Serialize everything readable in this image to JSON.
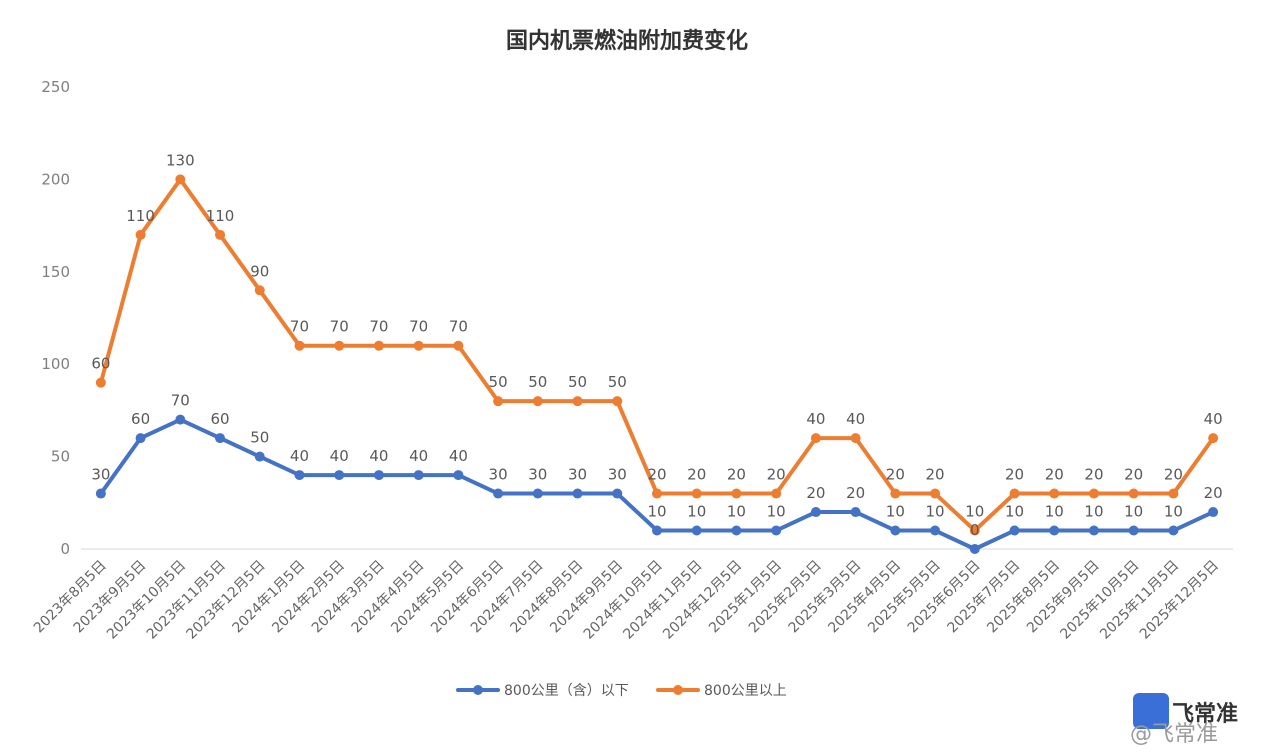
{
  "chart_data": {
    "type": "line",
    "title": "国内机票燃油附加费变化",
    "categories": [
      "2023年8月5日",
      "2023年9月5日",
      "2023年10月5日",
      "2023年11月5日",
      "2023年12月5日",
      "2024年1月5日",
      "2024年2月5日",
      "2024年3月5日",
      "2024年4月5日",
      "2024年5月5日",
      "2024年6月5日",
      "2024年7月5日",
      "2024年8月5日",
      "2024年9月5日",
      "2024年10月5日",
      "2024年11月5日",
      "2024年12月5日",
      "2025年1月5日",
      "2025年2月5日",
      "2025年3月5日",
      "2025年4月5日",
      "2025年5月5日",
      "2025年6月5日",
      "2025年7月5日",
      "2025年8月5日",
      "2025年9月5日",
      "2025年10月5日",
      "2025年11月5日",
      "2025年12月5日"
    ],
    "series": [
      {
        "name": "800公里（含）以下",
        "color": "#4472c4",
        "values": [
          30,
          60,
          70,
          60,
          50,
          40,
          40,
          40,
          40,
          40,
          30,
          30,
          30,
          30,
          10,
          10,
          10,
          10,
          20,
          20,
          10,
          10,
          0,
          10,
          10,
          10,
          10,
          10,
          20
        ]
      },
      {
        "name": "800公里以上",
        "color": "#ed7d31",
        "values": [
          60,
          110,
          130,
          110,
          90,
          70,
          70,
          70,
          70,
          70,
          50,
          50,
          50,
          50,
          20,
          20,
          20,
          20,
          40,
          40,
          20,
          20,
          10,
          20,
          20,
          20,
          20,
          20,
          40
        ]
      }
    ],
    "stacked": true,
    "yticks": [
      0,
      50,
      100,
      150,
      200,
      250
    ],
    "ylim": [
      0,
      250
    ],
    "grid": "baseline",
    "legend_position": "bottom"
  },
  "watermark": {
    "brand": "飞常准",
    "handle": "@飞常准"
  }
}
